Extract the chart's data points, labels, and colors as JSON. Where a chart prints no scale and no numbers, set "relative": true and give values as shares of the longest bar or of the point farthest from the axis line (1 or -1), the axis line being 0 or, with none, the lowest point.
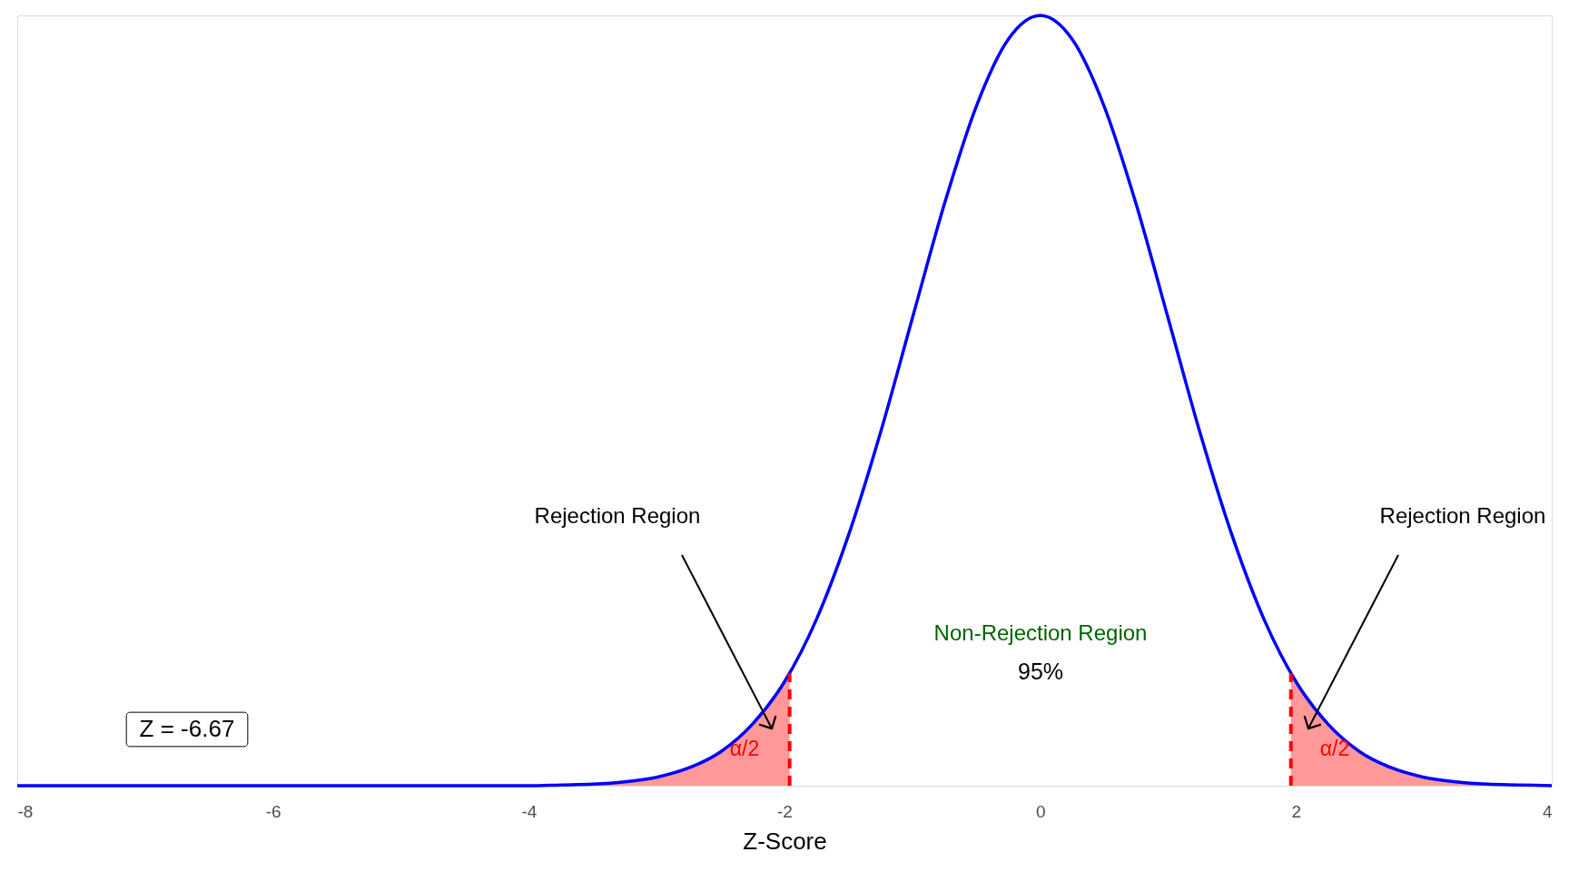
{
  "chart_data": {
    "type": "line",
    "relative": true,
    "xlabel": "Z-Score",
    "xlim": [
      -8,
      4
    ],
    "xticks": [
      -8,
      -6,
      -4,
      -2,
      0,
      2,
      4
    ],
    "series": [
      {
        "type": "area",
        "color": "#ff9999",
        "x": [
          -8,
          -7,
          -6,
          -5,
          -4,
          -3.75,
          -3.5,
          -3.25,
          -3,
          -2.75,
          -2.5,
          -2.25,
          -2,
          -1.96
        ],
        "values": [
          0,
          0,
          0,
          0,
          0,
          0.001,
          0.002,
          0.005,
          0.011,
          0.023,
          0.044,
          0.08,
          0.135,
          0.146
        ]
      },
      {
        "type": "area",
        "color": "#ff9999",
        "x": [
          1.96,
          2,
          2.25,
          2.5,
          2.75,
          3,
          3.25,
          3.5,
          3.75,
          4
        ],
        "values": [
          0.146,
          0.135,
          0.08,
          0.044,
          0.023,
          0.011,
          0.005,
          0.002,
          0.001,
          0
        ]
      },
      {
        "color": "#0000ff",
        "x": [
          -8,
          -7,
          -6,
          -5,
          -4,
          -3.75,
          -3.5,
          -3.25,
          -3,
          -2.75,
          -2.5,
          -2.25,
          -2,
          -1.75,
          -1.5,
          -1.25,
          -1,
          -0.75,
          -0.5,
          -0.25,
          0,
          0.25,
          0.5,
          0.75,
          1,
          1.25,
          1.5,
          1.75,
          2,
          2.25,
          2.5,
          2.75,
          3,
          3.25,
          3.5,
          3.75,
          4
        ],
        "values": [
          0,
          0,
          0,
          0,
          0,
          0.001,
          0.002,
          0.005,
          0.011,
          0.023,
          0.044,
          0.08,
          0.135,
          0.216,
          0.325,
          0.458,
          0.607,
          0.755,
          0.882,
          0.969,
          1,
          0.969,
          0.882,
          0.755,
          0.607,
          0.458,
          0.325,
          0.216,
          0.135,
          0.08,
          0.044,
          0.023,
          0.011,
          0.005,
          0.002,
          0.001,
          0
        ]
      },
      {
        "type": "line",
        "color": "#ff0000",
        "line_style": "dashed",
        "x": [
          -1.96,
          -1.96
        ],
        "values": [
          0,
          0.146
        ]
      },
      {
        "type": "line",
        "color": "#ff0000",
        "line_style": "dashed",
        "x": [
          1.96,
          1.96
        ],
        "values": [
          0,
          0.146
        ]
      }
    ],
    "annotations": [
      "Rejection Region",
      "Rejection Region",
      "α/2",
      "α/2",
      "Non-Rejection Region",
      "95%",
      "Z = -6.67"
    ]
  }
}
